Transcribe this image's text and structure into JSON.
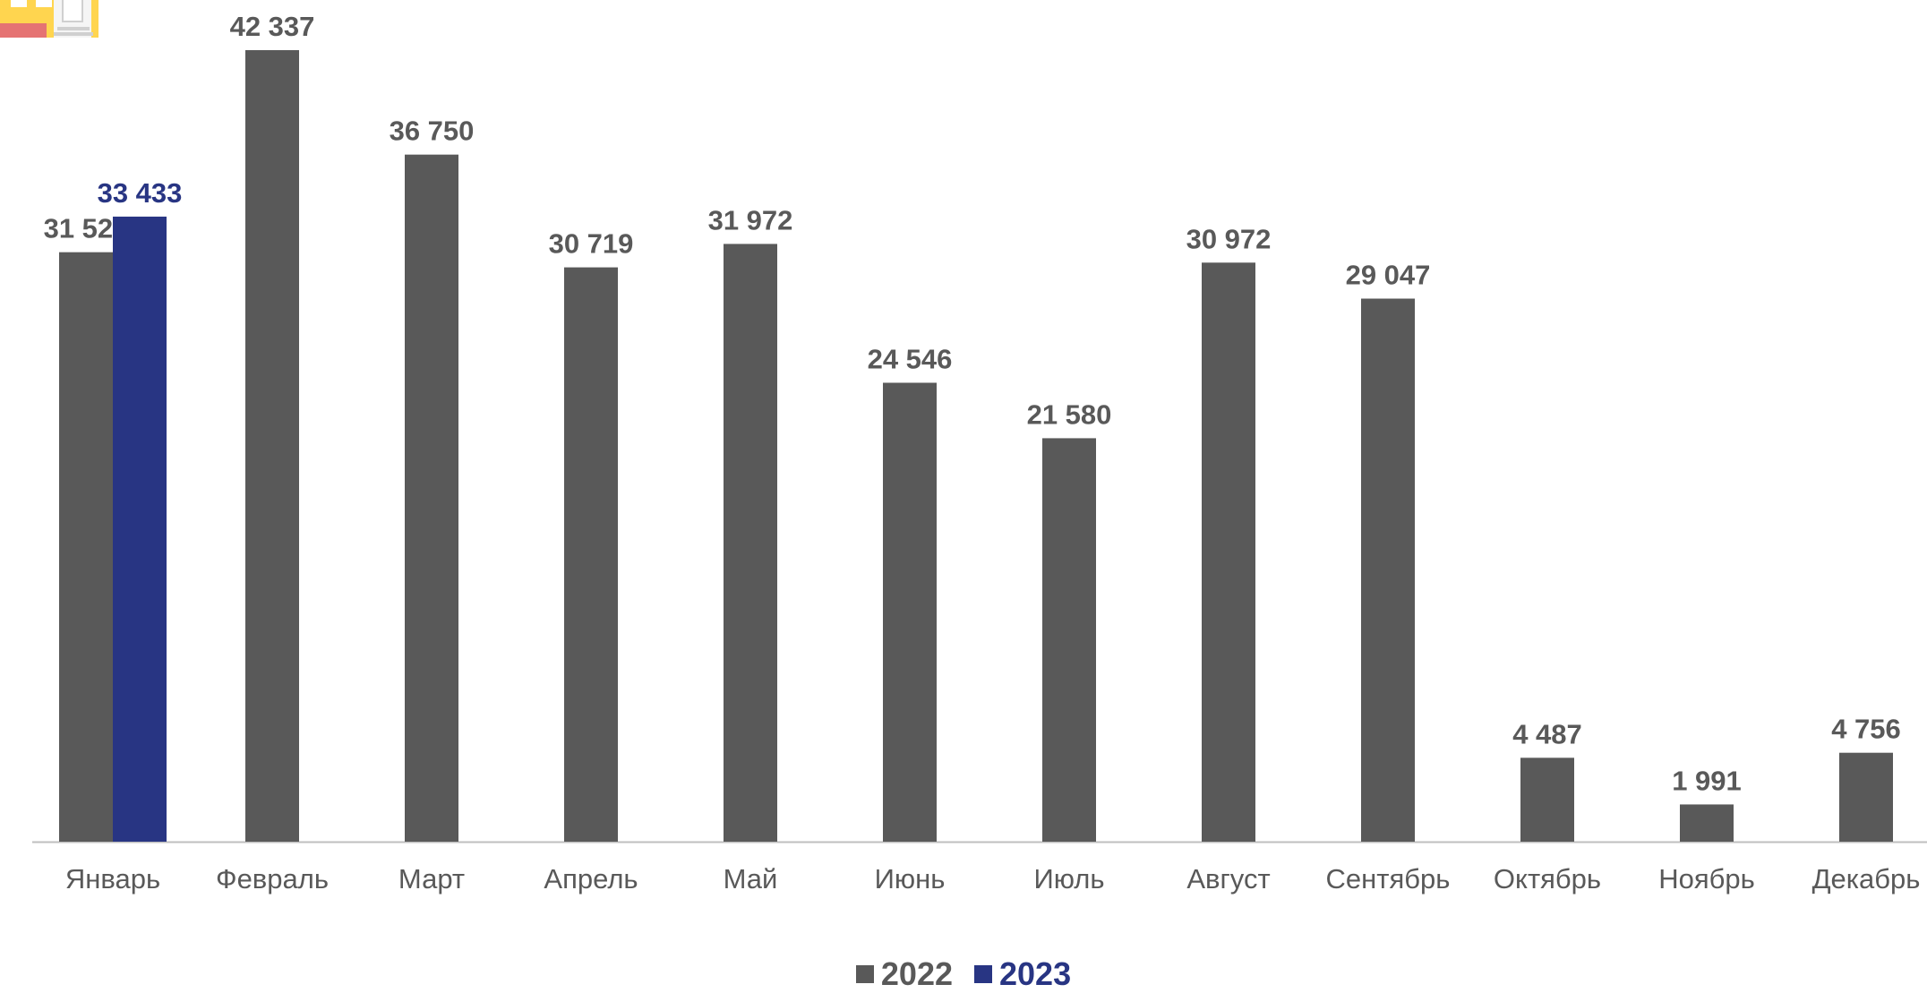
{
  "colors": {
    "series_2022": "#595959",
    "series_2023": "#283583",
    "axis": "#bfbfbf"
  },
  "logo": {
    "icon": "building-logo-icon"
  },
  "chart_data": {
    "type": "bar",
    "categories": [
      "Январь",
      "Февраль",
      "Март",
      "Апрель",
      "Май",
      "Июнь",
      "Июль",
      "Август",
      "Сентябрь",
      "Октябрь",
      "Ноябрь",
      "Декабрь"
    ],
    "series": [
      {
        "name": "2022",
        "values": [
          31529,
          42337,
          36750,
          30719,
          31972,
          24546,
          21580,
          30972,
          29047,
          4487,
          1991,
          4756
        ],
        "labels": [
          "31 529",
          "42 337",
          "36 750",
          "30 719",
          "31 972",
          "24 546",
          "21 580",
          "30 972",
          "29 047",
          "4 487",
          "1 991",
          "4 756"
        ]
      },
      {
        "name": "2023",
        "values": [
          33433,
          null,
          null,
          null,
          null,
          null,
          null,
          null,
          null,
          null,
          null,
          null
        ],
        "labels": [
          "33 433",
          "",
          "",
          "",
          "",
          "",
          "",
          "",
          "",
          "",
          "",
          ""
        ]
      }
    ],
    "ylim": [
      0,
      42337
    ],
    "grid": false,
    "legend": "bottom-center"
  }
}
